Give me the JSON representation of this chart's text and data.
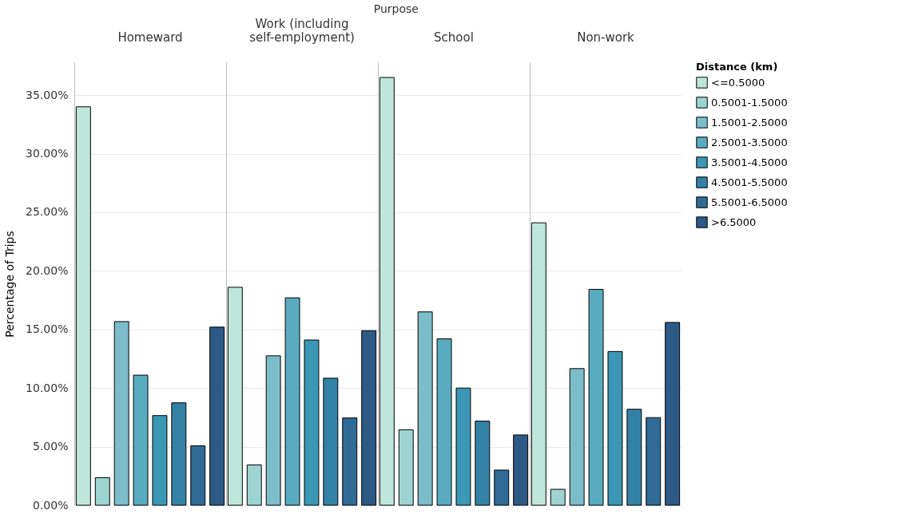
{
  "chart_data": {
    "type": "bar",
    "xlabel": "Purpose",
    "ylabel": "Percentage of Trips",
    "legend_title": "Distance (km)",
    "categories": [
      "Homeward",
      "Work (including self-employment)",
      "School",
      "Non-work"
    ],
    "series": [
      {
        "name": "<=0.5000",
        "color": "#bfe6da",
        "values": [
          34.0,
          18.6,
          36.5,
          24.1
        ]
      },
      {
        "name": "0.5001-1.5000",
        "color": "#9dd4d1",
        "values": [
          2.35,
          3.44,
          6.44,
          1.36
        ]
      },
      {
        "name": "1.5001-2.5000",
        "color": "#7cbdca",
        "values": [
          15.67,
          12.75,
          16.5,
          11.66
        ]
      },
      {
        "name": "2.5001-3.5000",
        "color": "#59abc0",
        "values": [
          11.1,
          17.7,
          14.2,
          18.42
        ]
      },
      {
        "name": "3.5001-4.5000",
        "color": "#3c97b4",
        "values": [
          7.65,
          14.1,
          10.0,
          13.12
        ]
      },
      {
        "name": "4.5001-5.5000",
        "color": "#3481a6",
        "values": [
          8.74,
          10.84,
          7.18,
          8.19
        ]
      },
      {
        "name": "5.5001-6.5000",
        "color": "#306b95",
        "values": [
          5.07,
          7.45,
          3.0,
          7.48
        ]
      },
      {
        "name": ">6.5000",
        "color": "#2d5985",
        "values": [
          15.2,
          14.9,
          6.0,
          15.6
        ]
      }
    ],
    "ylim": [
      0,
      37.8
    ],
    "yticks": [
      {
        "value": 0,
        "label": "0.00%"
      },
      {
        "value": 5,
        "label": "5.00%"
      },
      {
        "value": 10,
        "label": "10.00%"
      },
      {
        "value": 15,
        "label": "15.00%"
      },
      {
        "value": 20,
        "label": "20.00%"
      },
      {
        "value": 25,
        "label": "25.00%"
      },
      {
        "value": 30,
        "label": "30.00%"
      },
      {
        "value": 35,
        "label": "35.00%"
      }
    ],
    "grid": "y",
    "legend": "top right",
    "tick_labels": "y"
  }
}
